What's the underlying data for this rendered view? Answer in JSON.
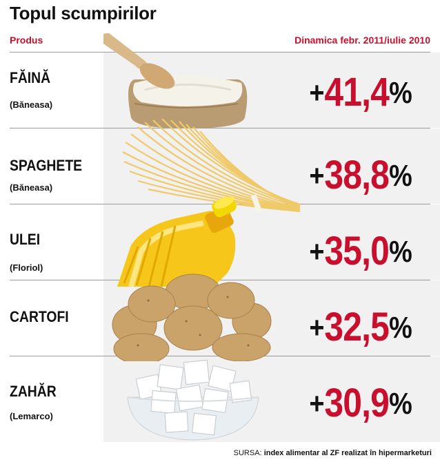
{
  "title": "Topul scumpirilor",
  "header": {
    "left": "Produs",
    "right": "Dinamica febr. 2011/iulie 2010"
  },
  "chart_data": {
    "type": "table",
    "title": "Topul scumpirilor",
    "columns": [
      "Produs",
      "Dinamica febr. 2011/iulie 2010"
    ],
    "rows": [
      {
        "name": "FĂINĂ",
        "brand": "(Băneasa)",
        "value": 41.4,
        "display": "41,4",
        "icon": "flour-sack-image"
      },
      {
        "name": "SPAGHETE",
        "brand": "(Băneasa)",
        "value": 38.8,
        "display": "38,8",
        "icon": "spaghetti-bundle-image"
      },
      {
        "name": "ULEI",
        "brand": "(Floriol)",
        "value": 35.0,
        "display": "35,0",
        "icon": "oil-bottle-image"
      },
      {
        "name": "CARTOFI",
        "brand": "",
        "value": 32.5,
        "display": "32,5",
        "icon": "potatoes-image"
      },
      {
        "name": "ZAHĂR",
        "brand": "(Lemarco)",
        "value": 30.9,
        "display": "30,9",
        "icon": "sugar-cubes-bowl-image"
      }
    ],
    "value_sign": "+",
    "value_unit": "%"
  },
  "source": {
    "label": "SURSA:",
    "text": "index alimentar al ZF realizat în hipermarketuri"
  },
  "colors": {
    "accent": "#c8102e",
    "text": "#111111",
    "panel": "#f1f1f1"
  }
}
